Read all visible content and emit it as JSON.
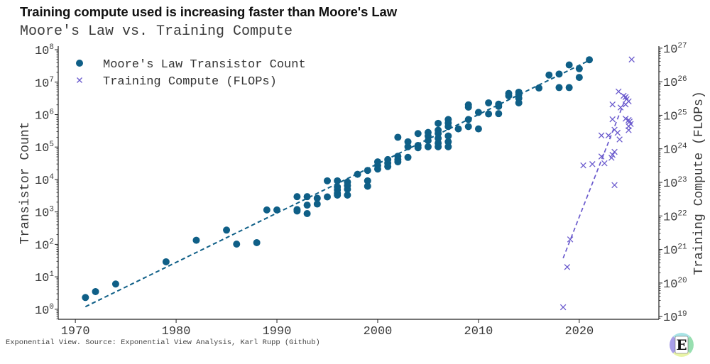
{
  "header": {
    "title": "Training compute used is increasing faster than Moore's Law",
    "subtitle": "Moore's Law vs. Training Compute"
  },
  "footer": {
    "source": "Exponential View. Source: Exponential View Analysis, Karl Rupp (Github)"
  },
  "logo": {
    "letter": "E",
    "colors": {
      "top": "#a8e4e6",
      "right": "#98dfb0",
      "bottom": "#e8f4a6",
      "left": "#a89ee8"
    }
  },
  "colors": {
    "moore": "#0f5f87",
    "compute": "#6a5acd",
    "axis": "#222222"
  },
  "chart_data": {
    "type": "scatter",
    "title": "Moore's Law vs. Training Compute",
    "xlabel": "",
    "ylabel": "Transistor Count",
    "ylabel_right": "Training Compute (FLOPs)",
    "xlim": [
      1968.3,
      2027.9
    ],
    "ylim": [
      0.49,
      129000000.0
    ],
    "yscale": "log",
    "ylim_right": [
      8.3e+18,
      1.15e+27
    ],
    "yscale_right": "log",
    "grid": false,
    "xticks": [
      {
        "value": 1970,
        "label": "1970"
      },
      {
        "value": 1980,
        "label": "1980"
      },
      {
        "value": 1990,
        "label": "1990"
      },
      {
        "value": 2000,
        "label": "2000"
      },
      {
        "value": 2010,
        "label": "2010"
      },
      {
        "value": 2020,
        "label": "2020"
      }
    ],
    "yticks_left": [
      {
        "value": 1,
        "base": "10",
        "exp": "0"
      },
      {
        "value": 10,
        "base": "10",
        "exp": "1"
      },
      {
        "value": 100,
        "base": "10",
        "exp": "2"
      },
      {
        "value": 1000,
        "base": "10",
        "exp": "3"
      },
      {
        "value": 10000,
        "base": "10",
        "exp": "4"
      },
      {
        "value": 100000,
        "base": "10",
        "exp": "5"
      },
      {
        "value": 1000000,
        "base": "10",
        "exp": "6"
      },
      {
        "value": 10000000,
        "base": "10",
        "exp": "7"
      },
      {
        "value": 100000000,
        "base": "10",
        "exp": "8"
      }
    ],
    "yticks_right": [
      {
        "value": 1e+19,
        "base": "10",
        "exp": "19"
      },
      {
        "value": 1e+20,
        "base": "10",
        "exp": "20"
      },
      {
        "value": 1e+21,
        "base": "10",
        "exp": "21"
      },
      {
        "value": 1e+22,
        "base": "10",
        "exp": "22"
      },
      {
        "value": 1e+23,
        "base": "10",
        "exp": "23"
      },
      {
        "value": 1e+24,
        "base": "10",
        "exp": "24"
      },
      {
        "value": 1e+25,
        "base": "10",
        "exp": "25"
      },
      {
        "value": 1e+26,
        "base": "10",
        "exp": "26"
      },
      {
        "value": 1e+27,
        "base": "10",
        "exp": "27"
      }
    ],
    "legend": {
      "position": "top-left",
      "entries": [
        {
          "label": "Moore's Law Transistor Count",
          "marker": "circle"
        },
        {
          "label": "Training Compute (FLOPs)",
          "marker": "x"
        }
      ]
    },
    "series": [
      {
        "name": "Moore's Law Transistor Count",
        "axis": "left",
        "marker": "circle",
        "points": [
          [
            1971,
            2.3
          ],
          [
            1972,
            3.5
          ],
          [
            1974,
            6
          ],
          [
            1979,
            29
          ],
          [
            1982,
            134
          ],
          [
            1985,
            275
          ],
          [
            1986,
            102
          ],
          [
            1988,
            113
          ],
          [
            1989,
            1150
          ],
          [
            1990,
            1150
          ],
          [
            1992,
            2950
          ],
          [
            1992,
            1070
          ],
          [
            1992,
            1180
          ],
          [
            1993,
            2950
          ],
          [
            1993,
            1620
          ],
          [
            1993,
            890
          ],
          [
            1994,
            2650
          ],
          [
            1994,
            1750
          ],
          [
            1995,
            9100
          ],
          [
            1995,
            2900
          ],
          [
            1996,
            9100
          ],
          [
            1996,
            5900
          ],
          [
            1996,
            4800
          ],
          [
            1996,
            3800
          ],
          [
            1996,
            3300
          ],
          [
            1997,
            8300
          ],
          [
            1997,
            6500
          ],
          [
            1997,
            5000
          ],
          [
            1997,
            3300
          ],
          [
            1998,
            14500
          ],
          [
            1999,
            19000
          ],
          [
            1999,
            9100
          ],
          [
            1999,
            6200
          ],
          [
            2000,
            35000
          ],
          [
            2000,
            27000
          ],
          [
            2000,
            21000
          ],
          [
            2001,
            41000
          ],
          [
            2001,
            32000
          ],
          [
            2001,
            25000
          ],
          [
            2002,
            200000
          ],
          [
            2002,
            52000
          ],
          [
            2002,
            41000
          ],
          [
            2002,
            35000
          ],
          [
            2003,
            145000
          ],
          [
            2003,
            102000
          ],
          [
            2003,
            48000
          ],
          [
            2004,
            260000
          ],
          [
            2004,
            112000
          ],
          [
            2004,
            95000
          ],
          [
            2005,
            282000
          ],
          [
            2005,
            219000
          ],
          [
            2005,
            158000
          ],
          [
            2005,
            102000
          ],
          [
            2006,
            537000
          ],
          [
            2006,
            331000
          ],
          [
            2006,
            260000
          ],
          [
            2006,
            186000
          ],
          [
            2006,
            132000
          ],
          [
            2006,
            102000
          ],
          [
            2007,
            708000
          ],
          [
            2007,
            550000
          ],
          [
            2007,
            427000
          ],
          [
            2007,
            219000
          ],
          [
            2007,
            145000
          ],
          [
            2007,
            102000
          ],
          [
            2008,
            363000
          ],
          [
            2009,
            2000000
          ],
          [
            2009,
            1700000
          ],
          [
            2009,
            708000
          ],
          [
            2009,
            427000
          ],
          [
            2010,
            1170000
          ],
          [
            2010,
            363000
          ],
          [
            2011,
            2300000
          ],
          [
            2011,
            1050000
          ],
          [
            2012,
            2100000
          ],
          [
            2012,
            1800000
          ],
          [
            2012,
            1070000
          ],
          [
            2013,
            4500000
          ],
          [
            2013,
            3800000
          ],
          [
            2014,
            4900000
          ],
          [
            2014,
            4200000
          ],
          [
            2014,
            3200000
          ],
          [
            2014,
            2300000
          ],
          [
            2016,
            6600000
          ],
          [
            2017,
            16600000
          ],
          [
            2018,
            17800000
          ],
          [
            2018,
            6800000
          ],
          [
            2019,
            34000000
          ],
          [
            2019,
            6800000
          ],
          [
            2020,
            26000000
          ],
          [
            2020,
            14000000
          ],
          [
            2021,
            49000000
          ]
        ]
      },
      {
        "name": "Training Compute (FLOPs)",
        "axis": "right",
        "marker": "x",
        "points": [
          [
            2025.2,
            4.6e+26
          ],
          [
            2023.9,
            5.1e+25
          ],
          [
            2024.4,
            3.8e+25
          ],
          [
            2024.6,
            3.5e+25
          ],
          [
            2024.7,
            3e+25
          ],
          [
            2024.9,
            2.6e+25
          ],
          [
            2024.6,
            2.1e+25
          ],
          [
            2023.3,
            2.1e+25
          ],
          [
            2024.1,
            1.7e+25
          ],
          [
            2023.3,
            7.6e+24
          ],
          [
            2024.6,
            7.9e+24
          ],
          [
            2024.9,
            7.2e+24
          ],
          [
            2025.0,
            6.5e+24
          ],
          [
            2025.1,
            5.5e+24
          ],
          [
            2024.9,
            4.7e+24
          ],
          [
            2024.9,
            3.6e+24
          ],
          [
            2023.5,
            3.7e+24
          ],
          [
            2023.8,
            3e+24
          ],
          [
            2024.0,
            1.9e+24
          ],
          [
            2022.2,
            2.5e+24
          ],
          [
            2022.9,
            2.5e+24
          ],
          [
            2023.5,
            8.1e+23
          ],
          [
            2023.3,
            6.6e+23
          ],
          [
            2023.2,
            5.4e+23
          ],
          [
            2022.2,
            5.9e+23
          ],
          [
            2022.5,
            3.7e+23
          ],
          [
            2021.3,
            3.5e+23
          ],
          [
            2020.4,
            3.2e+23
          ],
          [
            2023.5,
            8.3e+22
          ],
          [
            2019.1,
            2e+21
          ],
          [
            2018.8,
            3e+20
          ],
          [
            2018.4,
            1.9e+19
          ]
        ]
      }
    ],
    "trendlines": [
      {
        "series": "Moore's Law Transistor Count",
        "axis": "left",
        "style": "dashed",
        "points": [
          [
            1971,
            1.2
          ],
          [
            2021,
            47000000.0
          ]
        ]
      },
      {
        "series": "Training Compute (FLOPs)",
        "axis": "right",
        "style": "dashed",
        "points": [
          [
            2018.4,
            5.5e+20
          ],
          [
            2024.75,
            4.2e+25
          ]
        ]
      }
    ]
  }
}
